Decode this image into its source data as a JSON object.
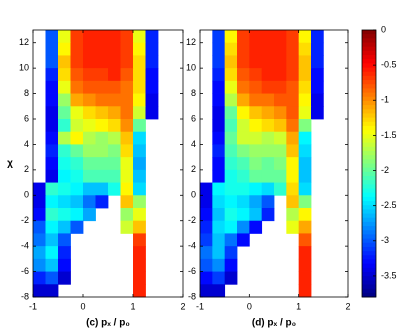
{
  "chart_data": [
    {
      "type": "heatmap",
      "xlabel": "(c) pₓ / p₀",
      "ylabel": "χ",
      "xlim": [
        -1,
        2
      ],
      "xticks": [
        -1,
        0,
        1,
        2
      ],
      "ylim": [
        -8,
        13
      ],
      "yticks": [
        -8,
        -6,
        -4,
        -2,
        0,
        2,
        4,
        6,
        8,
        10,
        12
      ],
      "x": [
        -0.875,
        -0.625,
        -0.375,
        -0.125,
        0.125,
        0.375,
        0.625,
        0.875,
        1.125,
        1.375,
        1.625,
        1.875
      ],
      "y": [
        12.5,
        11.5,
        10.5,
        9.5,
        8.5,
        7.5,
        6.5,
        5.5,
        4.5,
        3.5,
        2.5,
        1.5,
        0.5,
        -0.5,
        -1.5,
        -2.5,
        -3.5,
        -4.5,
        -5.5,
        -6.5,
        -7.5
      ],
      "z": [
        [
          null,
          -3,
          -1.5,
          -0.7,
          -0.6,
          -0.6,
          -0.6,
          -0.7,
          -1.5,
          -3.2,
          null,
          null
        ],
        [
          null,
          -3,
          -1.4,
          -0.7,
          -0.6,
          -0.6,
          -0.6,
          -0.7,
          -1.4,
          -3.2,
          null,
          null
        ],
        [
          null,
          -3,
          -1.2,
          -0.7,
          -0.6,
          -0.6,
          -0.6,
          -0.7,
          -1.3,
          -3.2,
          null,
          null
        ],
        [
          null,
          -3.2,
          -1.3,
          -0.8,
          -0.7,
          -0.7,
          -0.6,
          -0.8,
          -1.3,
          -3.3,
          null,
          null
        ],
        [
          null,
          -3.3,
          -1.5,
          -0.9,
          -0.8,
          -0.8,
          -0.8,
          -0.9,
          -1.3,
          -3.3,
          null,
          null
        ],
        [
          null,
          -3.3,
          -1.8,
          -1.1,
          -1,
          -0.9,
          -0.9,
          -0.9,
          -1.4,
          -3.4,
          null,
          null
        ],
        [
          null,
          -3.4,
          -2,
          -1.5,
          -1.3,
          -1.2,
          -1.1,
          -0.9,
          -1.6,
          -3.4,
          null,
          null
        ],
        [
          null,
          -3.4,
          -2.2,
          -1.6,
          -1.5,
          -1.4,
          -1.3,
          -1,
          -2,
          null,
          null,
          null
        ],
        [
          null,
          -3.3,
          -1.7,
          -1.4,
          -1.7,
          -1.8,
          -1.7,
          -1.2,
          -2.5,
          null,
          null,
          null
        ],
        [
          null,
          -3.2,
          -2.2,
          -2,
          -1.8,
          -1.8,
          -1.9,
          -1.3,
          -2.6,
          null,
          null,
          null
        ],
        [
          null,
          -3.3,
          -2.3,
          -2.2,
          -2,
          -2,
          -2,
          -1.5,
          -2.7,
          null,
          null,
          null
        ],
        [
          null,
          -3.4,
          -2.4,
          -2.3,
          -2.1,
          -2.1,
          -2.1,
          -1.5,
          -2.6,
          null,
          null,
          null
        ],
        [
          -3.4,
          -2.2,
          -2.3,
          -2.4,
          -2.6,
          -2.6,
          -2.3,
          -1.4,
          -2.5,
          null,
          null,
          null
        ],
        [
          -3.4,
          -2.4,
          -2.5,
          -2.6,
          -2.9,
          -3.2,
          null,
          -1.2,
          -1.8,
          null,
          null,
          null
        ],
        [
          -3.3,
          -2.2,
          -2.3,
          -2.4,
          -2.7,
          null,
          null,
          -1.8,
          -1.5,
          null,
          null,
          null
        ],
        [
          -3,
          -2.4,
          -2.6,
          -3,
          null,
          null,
          null,
          -1.6,
          -1.2,
          null,
          null,
          null
        ],
        [
          -2.9,
          -2.6,
          -3,
          null,
          null,
          null,
          null,
          null,
          -0.7,
          null,
          null,
          null
        ],
        [
          -2.7,
          -2.4,
          -3.2,
          null,
          null,
          null,
          null,
          null,
          -0.6,
          null,
          null,
          null
        ],
        [
          -2.8,
          -2.6,
          -3.3,
          null,
          null,
          null,
          null,
          null,
          -0.6,
          null,
          null,
          null
        ],
        [
          -3.2,
          -3,
          -3.5,
          null,
          null,
          null,
          null,
          null,
          -0.6,
          null,
          null,
          null
        ],
        [
          -3.5,
          -3.5,
          null,
          null,
          null,
          null,
          null,
          null,
          -0.6,
          null,
          null,
          null
        ]
      ]
    },
    {
      "type": "heatmap",
      "xlabel": "(d) pₓ / p₀",
      "xlim": [
        -1,
        2
      ],
      "xticks": [
        -1,
        0,
        1,
        2
      ],
      "ylim": [
        -8,
        13
      ],
      "yticks": [
        -8,
        -6,
        -4,
        -2,
        0,
        2,
        4,
        6,
        8,
        10,
        12
      ],
      "x": [
        -0.875,
        -0.625,
        -0.375,
        -0.125,
        0.125,
        0.375,
        0.625,
        0.875,
        1.125,
        1.375,
        1.625,
        1.875
      ],
      "y": [
        12.5,
        11.5,
        10.5,
        9.5,
        8.5,
        7.5,
        6.5,
        5.5,
        4.5,
        3.5,
        2.5,
        1.5,
        0.5,
        -0.5,
        -1.5,
        -2.5,
        -3.5,
        -4.5,
        -5.5,
        -6.5,
        -7.5
      ],
      "z": [
        [
          null,
          -3.1,
          -1.4,
          -0.7,
          -0.6,
          -0.6,
          -0.6,
          -0.7,
          -1.4,
          -3.2,
          null,
          null
        ],
        [
          null,
          -3.1,
          -1.3,
          -0.7,
          -0.6,
          -0.6,
          -0.6,
          -0.7,
          -1.3,
          -3.2,
          null,
          null
        ],
        [
          null,
          -3.1,
          -1.2,
          -0.7,
          -0.6,
          -0.6,
          -0.6,
          -0.7,
          -1.2,
          -3.2,
          null,
          null
        ],
        [
          null,
          -3.2,
          -1.3,
          -0.8,
          -0.7,
          -0.6,
          -0.6,
          -0.7,
          -1.2,
          -3.3,
          null,
          null
        ],
        [
          null,
          -3.3,
          -1.5,
          -0.9,
          -0.8,
          -0.7,
          -0.7,
          -0.8,
          -1.3,
          -3.3,
          null,
          null
        ],
        [
          null,
          -3.3,
          -1.7,
          -1.1,
          -0.9,
          -0.9,
          -0.8,
          -0.8,
          -1.4,
          -3.4,
          null,
          null
        ],
        [
          null,
          -3.4,
          -2,
          -1.4,
          -1.2,
          -1.1,
          -1,
          -0.8,
          -1.5,
          -3.4,
          null,
          null
        ],
        [
          null,
          -3.4,
          -2.1,
          -1.6,
          -1.4,
          -1.3,
          -1.2,
          -0.9,
          -1.9,
          null,
          null,
          null
        ],
        [
          null,
          -3.3,
          -2,
          -1.6,
          -1.6,
          -1.7,
          -1.6,
          -1.1,
          -2.4,
          null,
          null,
          null
        ],
        [
          null,
          -3.2,
          -2.1,
          -1.9,
          -1.8,
          -1.8,
          -1.8,
          -1.2,
          -2.5,
          null,
          null,
          null
        ],
        [
          null,
          -3.3,
          -2.2,
          -2.1,
          -1.9,
          -2,
          -1.9,
          -1.4,
          -2.6,
          null,
          null,
          null
        ],
        [
          null,
          -3.3,
          -2.3,
          -2.2,
          -2,
          -2,
          -2,
          -1.4,
          -2.6,
          null,
          null,
          null
        ],
        [
          -3.4,
          -2.4,
          -2.3,
          -2.3,
          -2.4,
          -2.5,
          -2.2,
          -1.3,
          -2.5,
          null,
          null,
          null
        ],
        [
          -3.4,
          -2.5,
          -2.4,
          -2.5,
          -2.7,
          -3,
          null,
          -1.2,
          -1.9,
          null,
          null,
          null
        ],
        [
          -3.3,
          -2.6,
          -2.3,
          -2.4,
          -2.6,
          -3.2,
          null,
          -1.7,
          -1.4,
          null,
          null,
          null
        ],
        [
          -3.2,
          -2.5,
          -2.4,
          -2.8,
          -3.3,
          null,
          null,
          -1.5,
          -1.1,
          null,
          null,
          null
        ],
        [
          -3.1,
          -2.6,
          -2.9,
          -3.3,
          null,
          null,
          null,
          null,
          -0.8,
          null,
          null,
          null
        ],
        [
          -2.9,
          -2.6,
          -3.1,
          null,
          null,
          null,
          null,
          null,
          -0.6,
          null,
          null,
          null
        ],
        [
          -3,
          -2.8,
          -3.3,
          null,
          null,
          null,
          null,
          null,
          -0.6,
          null,
          null,
          null
        ],
        [
          -3.3,
          -3.1,
          -3.5,
          null,
          null,
          null,
          null,
          null,
          -0.6,
          null,
          null,
          null
        ],
        [
          -3.5,
          -3.5,
          null,
          null,
          null,
          null,
          null,
          null,
          -0.6,
          null,
          null,
          null
        ]
      ]
    }
  ],
  "colorbar": {
    "colormap": "jet",
    "clim": [
      -3.8,
      0
    ],
    "ticks": [
      0,
      -0.5,
      -1,
      -1.5,
      -2,
      -2.5,
      -3,
      -3.5
    ]
  }
}
